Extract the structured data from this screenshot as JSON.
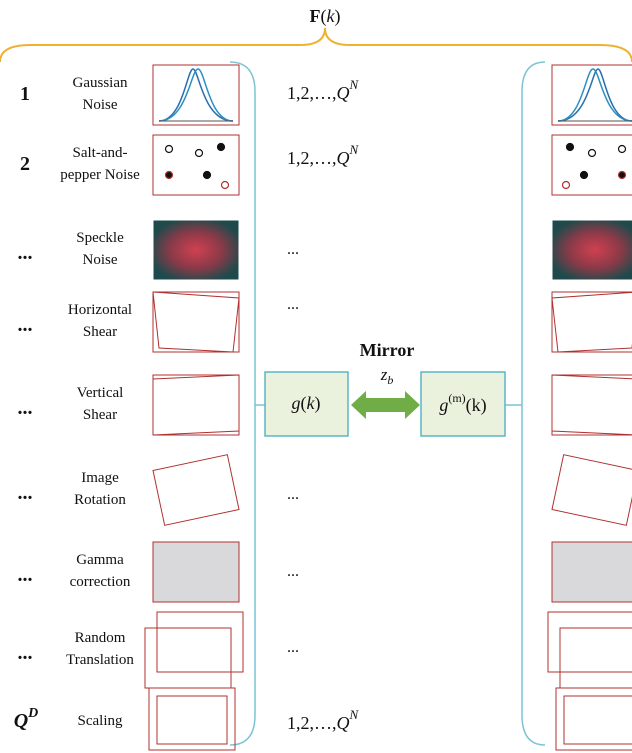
{
  "title": [
    "F",
    "(",
    "k",
    ")"
  ],
  "rows": [
    {
      "index": "1",
      "name": [
        "Gaussian",
        "Noise"
      ],
      "range": {
        "text": "1,2,…,",
        "var": "Q",
        "sup": "N"
      }
    },
    {
      "index": "2",
      "name": [
        "Salt-and-",
        "pepper Noise"
      ],
      "range": {
        "text": "1,2,…,",
        "var": "Q",
        "sup": "N"
      }
    },
    {
      "index": "...",
      "name": [
        "Speckle",
        "Noise"
      ],
      "range": "..."
    },
    {
      "index": "...",
      "name": [
        "Horizontal",
        "Shear"
      ],
      "range": "..."
    },
    {
      "index": "...",
      "name": [
        "Vertical",
        "Shear"
      ]
    },
    {
      "index": "...",
      "name": [
        "Image",
        "Rotation"
      ],
      "range": "..."
    },
    {
      "index": "...",
      "name": [
        "Gamma",
        "correction"
      ],
      "range": "..."
    },
    {
      "index": "...",
      "name": [
        "Random",
        "Translation"
      ],
      "range": "..."
    },
    {
      "index": {
        "base": "Q",
        "sup": "D"
      },
      "name": [
        "Scaling"
      ],
      "range": {
        "text": "1,2,…,",
        "var": "Q",
        "sup": "N"
      }
    }
  ],
  "mirror": "Mirror",
  "latent": {
    "base": "z",
    "sub": "b"
  },
  "left_box": [
    "g",
    "(",
    "k",
    ")"
  ],
  "right_box": {
    "base": "g",
    "sup": "(m)",
    "rest": "(k)"
  }
}
